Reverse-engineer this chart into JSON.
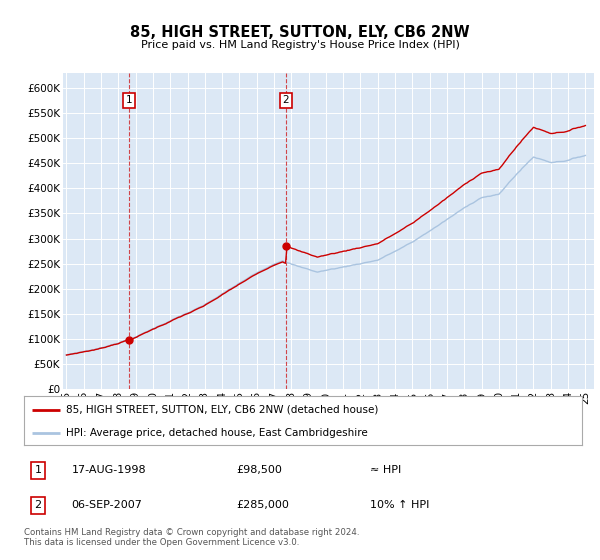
{
  "title": "85, HIGH STREET, SUTTON, ELY, CB6 2NW",
  "subtitle": "Price paid vs. HM Land Registry's House Price Index (HPI)",
  "legend_line1": "85, HIGH STREET, SUTTON, ELY, CB6 2NW (detached house)",
  "legend_line2": "HPI: Average price, detached house, East Cambridgeshire",
  "annotation1_label": "1",
  "annotation1_date": "17-AUG-1998",
  "annotation1_price": "£98,500",
  "annotation1_hpi": "≈ HPI",
  "annotation2_label": "2",
  "annotation2_date": "06-SEP-2007",
  "annotation2_price": "£285,000",
  "annotation2_hpi": "10% ↑ HPI",
  "footnote": "Contains HM Land Registry data © Crown copyright and database right 2024.\nThis data is licensed under the Open Government Licence v3.0.",
  "hpi_color": "#aac4e0",
  "price_color": "#cc0000",
  "annotation_color": "#cc0000",
  "bg_color": "#dce8f5",
  "ylim": [
    0,
    630000
  ],
  "yticks": [
    0,
    50000,
    100000,
    150000,
    200000,
    250000,
    300000,
    350000,
    400000,
    450000,
    500000,
    550000,
    600000
  ],
  "sale1_x": 1998.63,
  "sale1_y": 98500,
  "sale2_x": 2007.68,
  "sale2_y": 285000,
  "xmin": 1994.8,
  "xmax": 2025.5
}
